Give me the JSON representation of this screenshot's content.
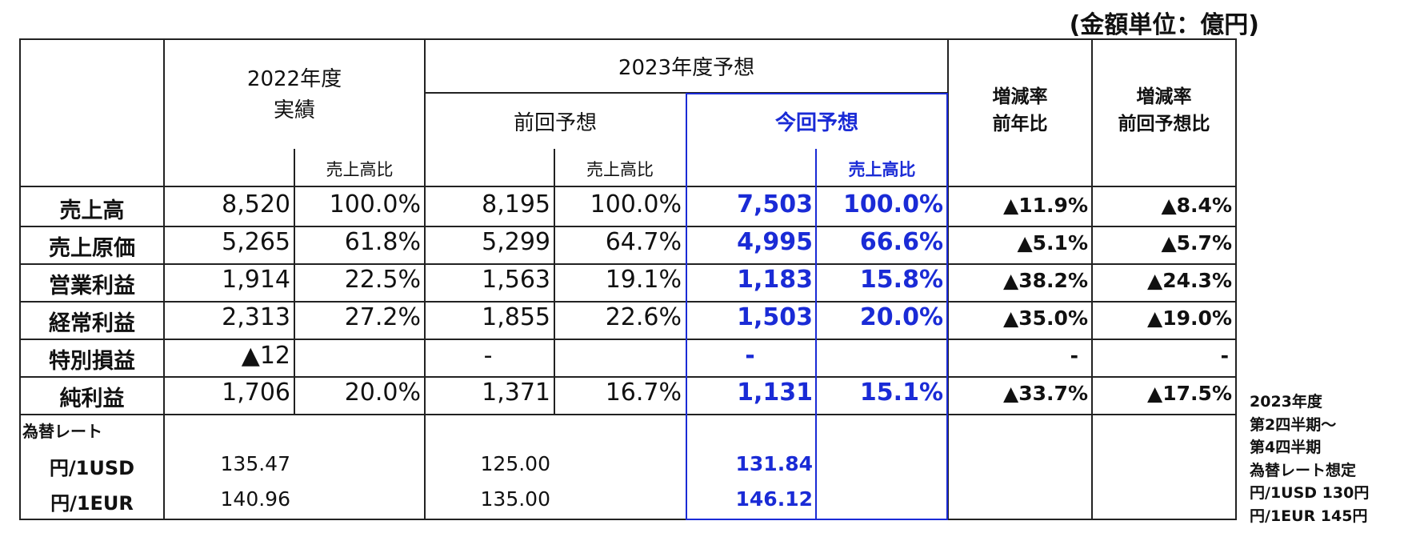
{
  "unit_note": "(金額単位：億円)",
  "headers": {
    "fy2022_line1": "2022年度",
    "fy2022_line2": "実績",
    "fy2023": "2023年度予想",
    "prev_forecast": "前回予想",
    "curr_forecast": "今回予想",
    "yoy_line1": "増減率",
    "yoy_line2": "前年比",
    "vs_prev_line1": "増減率",
    "vs_prev_line2": "前回予想比",
    "ratio_2022": "売上高比",
    "ratio_prev": "売上高比",
    "ratio_curr": "売上高比"
  },
  "rows": [
    {
      "label": "売上高",
      "fy2022": "8,520",
      "fy2022_ratio": "100.0%",
      "prev": "8,195",
      "prev_ratio": "100.0%",
      "curr": "7,503",
      "curr_ratio": "100.0%",
      "yoy": "▲11.9%",
      "vs_prev": "▲8.4%"
    },
    {
      "label": "売上原価",
      "fy2022": "5,265",
      "fy2022_ratio": "61.8%",
      "prev": "5,299",
      "prev_ratio": "64.7%",
      "curr": "4,995",
      "curr_ratio": "66.6%",
      "yoy": "▲5.1%",
      "vs_prev": "▲5.7%"
    },
    {
      "label": "営業利益",
      "fy2022": "1,914",
      "fy2022_ratio": "22.5%",
      "prev": "1,563",
      "prev_ratio": "19.1%",
      "curr": "1,183",
      "curr_ratio": "15.8%",
      "yoy": "▲38.2%",
      "vs_prev": "▲24.3%"
    },
    {
      "label": "経常利益",
      "fy2022": "2,313",
      "fy2022_ratio": "27.2%",
      "prev": "1,855",
      "prev_ratio": "22.6%",
      "curr": "1,503",
      "curr_ratio": "20.0%",
      "yoy": "▲35.0%",
      "vs_prev": "▲19.0%"
    },
    {
      "label": "特別損益",
      "fy2022": "▲12",
      "fy2022_ratio": "",
      "prev": "-",
      "prev_ratio": "",
      "curr": "-",
      "curr_ratio": "",
      "yoy": "-",
      "vs_prev": "-"
    },
    {
      "label": "純利益",
      "fy2022": "1,706",
      "fy2022_ratio": "20.0%",
      "prev": "1,371",
      "prev_ratio": "16.7%",
      "curr": "1,131",
      "curr_ratio": "15.1%",
      "yoy": "▲33.7%",
      "vs_prev": "▲17.5%"
    }
  ],
  "fx": {
    "title": "為替レート",
    "usd_label": "円/1USD",
    "eur_label": "円/1EUR",
    "usd": {
      "fy2022": "135.47",
      "prev": "125.00",
      "curr": "131.84"
    },
    "eur": {
      "fy2022": "140.96",
      "prev": "135.00",
      "curr": "146.12"
    }
  },
  "side_note": {
    "line1": "2023年度",
    "line2": "第2四半期～",
    "line3": "第4四半期",
    "line4": "為替レート想定",
    "line5": "円/1USD 130円",
    "line6": "円/1EUR 145円"
  }
}
